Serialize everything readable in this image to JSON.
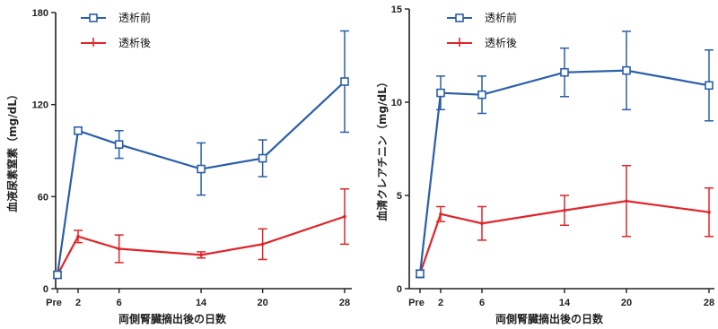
{
  "colors": {
    "pre": "#2a5fa8",
    "post": "#e0252a",
    "axis": "#222222"
  },
  "chart_data": [
    {
      "type": "line",
      "categories": [
        "Pre",
        "2",
        "6",
        "14",
        "20",
        "28"
      ],
      "x": [
        0,
        2,
        6,
        14,
        20,
        28
      ],
      "xlabel": "両側腎臓摘出後の日数",
      "ylabel": "血液尿素窒素（mg/dL）",
      "ylim": [
        0,
        180
      ],
      "yticks": [
        "0",
        "60",
        "120",
        "180"
      ],
      "grid": false,
      "legend": "top-left",
      "series": [
        {
          "name": "透析前",
          "color": "#2a5fa8",
          "marker": "square",
          "x": [
            0,
            2,
            6,
            14,
            20,
            28
          ],
          "values": [
            9,
            103,
            94,
            78,
            85,
            135
          ],
          "err": [
            2,
            2,
            9,
            17,
            12,
            33
          ]
        },
        {
          "name": "透析後",
          "color": "#e0252a",
          "marker": "none",
          "x": [
            0,
            2,
            6,
            14,
            20,
            28
          ],
          "values": [
            9,
            34,
            26,
            22,
            29,
            47
          ],
          "err": [
            2,
            4,
            9,
            2,
            10,
            18
          ]
        }
      ]
    },
    {
      "type": "line",
      "categories": [
        "Pre",
        "2",
        "6",
        "14",
        "20",
        "28"
      ],
      "x": [
        0,
        2,
        6,
        14,
        20,
        28
      ],
      "xlabel": "両側腎臓摘出後の日数",
      "ylabel": "血清クレアチニン（mg/dL）",
      "ylim": [
        0,
        15
      ],
      "yticks": [
        "0",
        "5",
        "10",
        "15"
      ],
      "grid": false,
      "legend": "top-left",
      "series": [
        {
          "name": "透析前",
          "color": "#2a5fa8",
          "marker": "square",
          "x": [
            0,
            2,
            6,
            14,
            20,
            28
          ],
          "values": [
            0.8,
            10.5,
            10.4,
            11.6,
            11.7,
            10.9
          ],
          "err": [
            0.2,
            0.9,
            1.0,
            1.3,
            2.1,
            1.9
          ]
        },
        {
          "name": "透析後",
          "color": "#e0252a",
          "marker": "none",
          "x": [
            0,
            2,
            6,
            14,
            20,
            28
          ],
          "values": [
            0.8,
            4.0,
            3.5,
            4.2,
            4.7,
            4.1
          ],
          "err": [
            0.2,
            0.4,
            0.9,
            0.8,
            1.9,
            1.3
          ]
        }
      ]
    }
  ]
}
